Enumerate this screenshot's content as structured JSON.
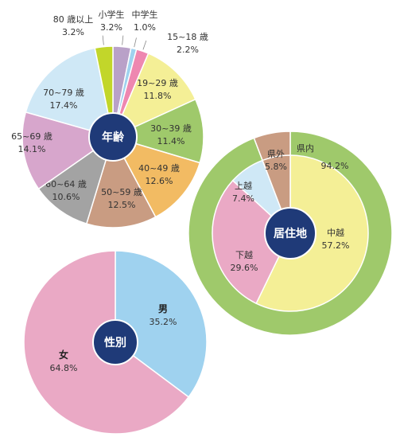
{
  "chart_data": [
    {
      "type": "pie",
      "title": "年齢",
      "unit": "%",
      "slices": [
        {
          "label": "小学生",
          "value": 3.2,
          "value_text": "3.2%",
          "color": "#b9a1c8"
        },
        {
          "label": "中学生",
          "value": 1.0,
          "value_text": "1.0%",
          "color": "#9fd2ef"
        },
        {
          "label": "15~18 歳",
          "value": 2.2,
          "value_text": "2.2%",
          "color": "#ee87b0"
        },
        {
          "label": "19~29 歳",
          "value": 11.8,
          "value_text": "11.8%",
          "color": "#f4ef96"
        },
        {
          "label": "30~39 歳",
          "value": 11.4,
          "value_text": "11.4%",
          "color": "#9fc96b"
        },
        {
          "label": "40~49 歳",
          "value": 12.6,
          "value_text": "12.6%",
          "color": "#f2bb63"
        },
        {
          "label": "50~59 歳",
          "value": 12.5,
          "value_text": "12.5%",
          "color": "#c99c82"
        },
        {
          "label": "60~64 歳",
          "value": 10.6,
          "value_text": "10.6%",
          "color": "#a3a3a3"
        },
        {
          "label": "65~69 歳",
          "value": 14.1,
          "value_text": "14.1%",
          "color": "#d7a6cc"
        },
        {
          "label": "70~79 歳",
          "value": 17.4,
          "value_text": "17.4%",
          "color": "#cfe8f6"
        },
        {
          "label": "80 歳以上",
          "value": 3.2,
          "value_text": "3.2%",
          "color": "#c2d62a"
        }
      ]
    },
    {
      "type": "pie",
      "title": "居住地",
      "unit": "%",
      "outer": [
        {
          "label": "県内",
          "value": 94.2,
          "value_text": "94.2%",
          "color": "#9fc96b"
        },
        {
          "label": "県外",
          "value": 5.8,
          "value_text": "5.8%",
          "color": "#c99c82"
        }
      ],
      "inner": [
        {
          "label": "中越",
          "value": 57.2,
          "value_text": "57.2%",
          "color": "#f4ef96"
        },
        {
          "label": "下越",
          "value": 29.6,
          "value_text": "29.6%",
          "color": "#eaa9c5"
        },
        {
          "label": "上越",
          "value": 7.4,
          "value_text": "7.4%",
          "color": "#cfe8f6"
        },
        {
          "label": "県外",
          "value": 5.8,
          "value_text": "5.8%",
          "color": "#c99c82"
        }
      ]
    },
    {
      "type": "pie",
      "title": "性別",
      "unit": "%",
      "slices": [
        {
          "label": "男",
          "value": 35.2,
          "value_text": "35.2%",
          "color": "#9fd2ef"
        },
        {
          "label": "女",
          "value": 64.8,
          "value_text": "64.8%",
          "color": "#eaa9c5"
        }
      ]
    }
  ],
  "colors": {
    "center_badge": "#1f3a78",
    "separator": "#ffffff"
  }
}
